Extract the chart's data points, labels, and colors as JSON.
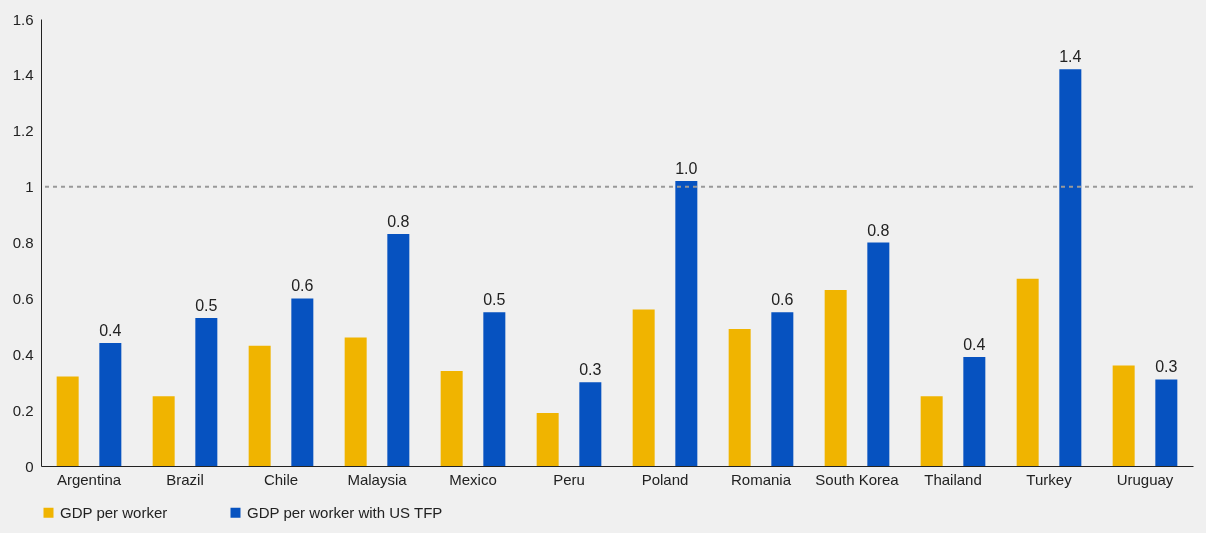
{
  "chart_data": {
    "type": "bar",
    "categories": [
      "Argentina",
      "Brazil",
      "Chile",
      "Malaysia",
      "Mexico",
      "Peru",
      "Poland",
      "Romania",
      "South Korea",
      "Thailand",
      "Turkey",
      "Uruguay"
    ],
    "series": [
      {
        "name": "GDP per worker",
        "color": "#f0b400",
        "values": [
          0.32,
          0.25,
          0.43,
          0.46,
          0.34,
          0.19,
          0.56,
          0.49,
          0.63,
          0.25,
          0.67,
          0.36
        ]
      },
      {
        "name": "GDP per worker with US TFP",
        "color": "#0652c0",
        "values": [
          0.44,
          0.53,
          0.6,
          0.83,
          0.55,
          0.3,
          1.02,
          0.55,
          0.8,
          0.39,
          1.42,
          0.31
        ],
        "value_labels": [
          "0.4",
          "0.5",
          "0.6",
          "0.8",
          "0.5",
          "0.3",
          "1.0",
          "0.6",
          "0.8",
          "0.4",
          "1.4",
          "0.3"
        ]
      }
    ],
    "ylim": [
      0,
      1.6
    ],
    "yticks": [
      0,
      0.2,
      0.4,
      0.6,
      0.8,
      1,
      1.2,
      1.4,
      1.6
    ],
    "ref_lines": [
      {
        "axis": "y",
        "value": 1,
        "color": "#999999",
        "line_style": "dashed"
      }
    ],
    "grid": false,
    "legend": "bottom"
  }
}
